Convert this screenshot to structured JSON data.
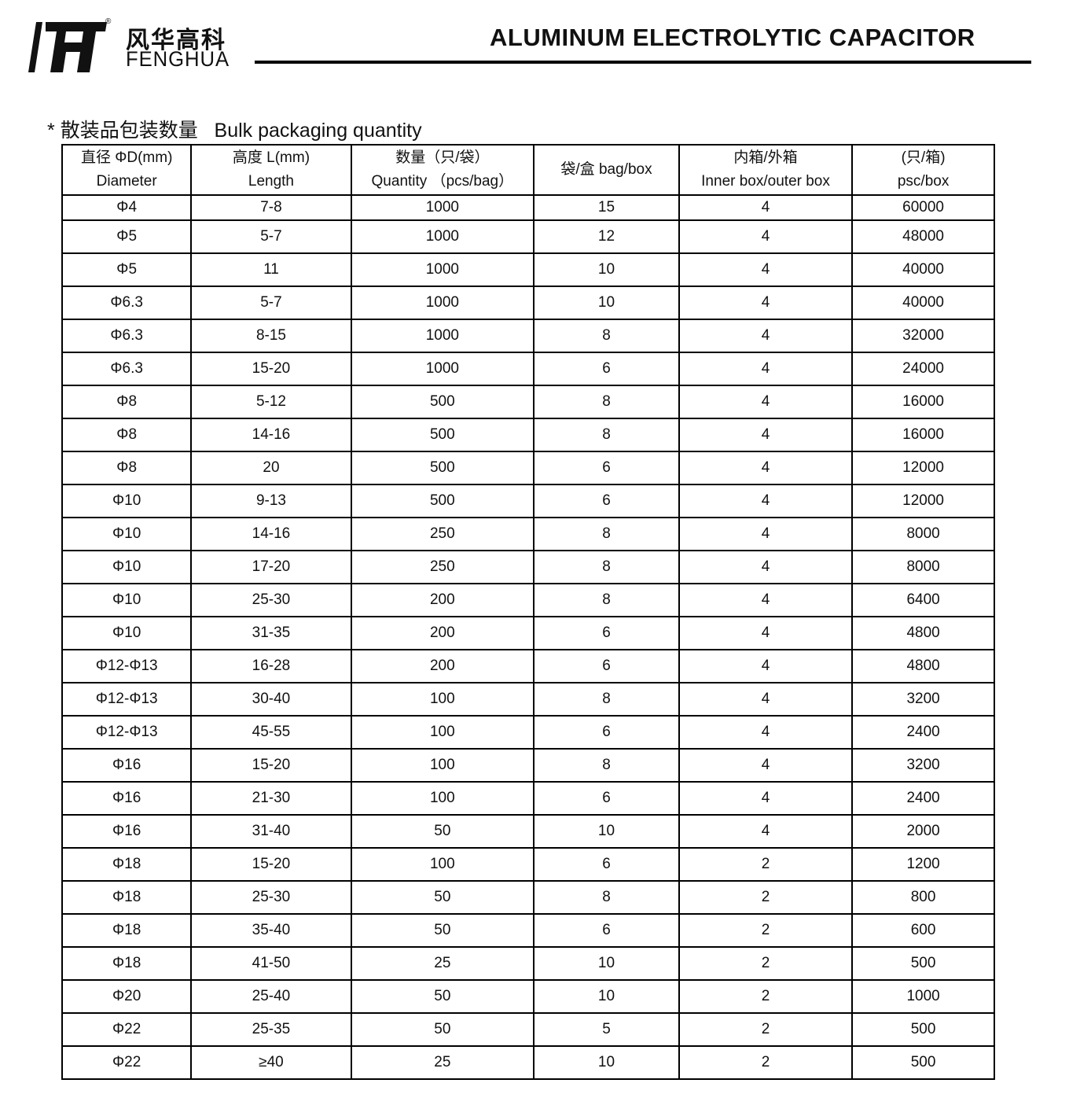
{
  "header": {
    "brand_cn": "风华高科",
    "brand_en": "FENGHUA",
    "registered": "®",
    "title": "ALUMINUM ELECTROLYTIC CAPACITOR"
  },
  "section": {
    "bullet": "*",
    "title_cn": "散装品包装数量",
    "title_en": "Bulk packaging quantity"
  },
  "table": {
    "columns": [
      {
        "cn": "直径 ΦD(mm)",
        "en": "Diameter"
      },
      {
        "cn": "高度 L(mm)",
        "en": "Length"
      },
      {
        "cn": "数量（只/袋）",
        "en": "Quantity （pcs/bag）"
      },
      {
        "cn": "袋/盒 bag/box",
        "en": ""
      },
      {
        "cn": "内箱/外箱",
        "en": "Inner box/outer box"
      },
      {
        "cn": "(只/箱)",
        "en": "psc/box"
      }
    ],
    "rows": [
      [
        "Φ4",
        "7-8",
        "1000",
        "15",
        "4",
        "60000"
      ],
      [
        "Φ5",
        "5-7",
        "1000",
        "12",
        "4",
        "48000"
      ],
      [
        "Φ5",
        "11",
        "1000",
        "10",
        "4",
        "40000"
      ],
      [
        "Φ6.3",
        "5-7",
        "1000",
        "10",
        "4",
        "40000"
      ],
      [
        "Φ6.3",
        "8-15",
        "1000",
        "8",
        "4",
        "32000"
      ],
      [
        "Φ6.3",
        "15-20",
        "1000",
        "6",
        "4",
        "24000"
      ],
      [
        "Φ8",
        "5-12",
        "500",
        "8",
        "4",
        "16000"
      ],
      [
        "Φ8",
        "14-16",
        "500",
        "8",
        "4",
        "16000"
      ],
      [
        "Φ8",
        "20",
        "500",
        "6",
        "4",
        "12000"
      ],
      [
        "Φ10",
        "9-13",
        "500",
        "6",
        "4",
        "12000"
      ],
      [
        "Φ10",
        "14-16",
        "250",
        "8",
        "4",
        "8000"
      ],
      [
        "Φ10",
        "17-20",
        "250",
        "8",
        "4",
        "8000"
      ],
      [
        "Φ10",
        "25-30",
        "200",
        "8",
        "4",
        "6400"
      ],
      [
        "Φ10",
        "31-35",
        "200",
        "6",
        "4",
        "4800"
      ],
      [
        "Φ12-Φ13",
        "16-28",
        "200",
        "6",
        "4",
        "4800"
      ],
      [
        "Φ12-Φ13",
        "30-40",
        "100",
        "8",
        "4",
        "3200"
      ],
      [
        "Φ12-Φ13",
        "45-55",
        "100",
        "6",
        "4",
        "2400"
      ],
      [
        "Φ16",
        "15-20",
        "100",
        "8",
        "4",
        "3200"
      ],
      [
        "Φ16",
        "21-30",
        "100",
        "6",
        "4",
        "2400"
      ],
      [
        "Φ16",
        "31-40",
        "50",
        "10",
        "4",
        "2000"
      ],
      [
        "Φ18",
        "15-20",
        "100",
        "6",
        "2",
        "1200"
      ],
      [
        "Φ18",
        "25-30",
        "50",
        "8",
        "2",
        "800"
      ],
      [
        "Φ18",
        "35-40",
        "50",
        "6",
        "2",
        "600"
      ],
      [
        "Φ18",
        "41-50",
        "25",
        "10",
        "2",
        "500"
      ],
      [
        "Φ20",
        "25-40",
        "50",
        "10",
        "2",
        "1000"
      ],
      [
        "Φ22",
        "25-35",
        "50",
        "5",
        "2",
        "500"
      ],
      [
        "Φ22",
        "≥40",
        "25",
        "10",
        "2",
        "500"
      ]
    ]
  }
}
